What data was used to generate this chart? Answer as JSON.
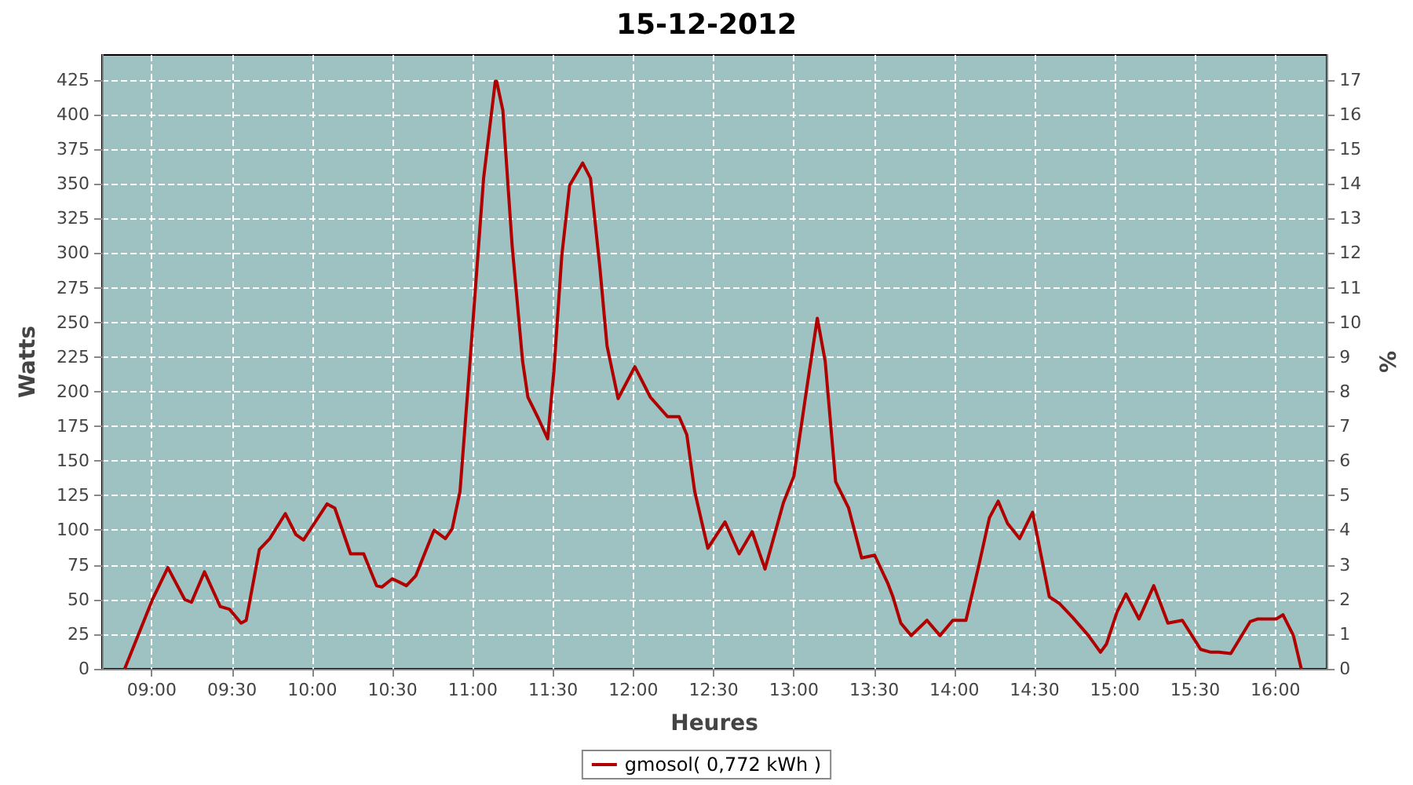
{
  "chart_data": {
    "type": "line",
    "title": "15-12-2012",
    "xlabel": "Heures",
    "ylabel": "Watts",
    "y2label": "%",
    "x": [
      8.831,
      9.004,
      9.1,
      9.205,
      9.247,
      9.328,
      9.426,
      9.484,
      9.556,
      9.588,
      9.67,
      9.735,
      9.832,
      9.897,
      9.945,
      10.092,
      10.14,
      10.238,
      10.32,
      10.4,
      10.433,
      10.498,
      10.586,
      10.644,
      10.758,
      10.829,
      10.871,
      10.92,
      10.985,
      11.067,
      11.14,
      11.148,
      11.187,
      11.245,
      11.31,
      11.343,
      11.407,
      11.466,
      11.505,
      11.554,
      11.603,
      11.684,
      11.733,
      11.791,
      11.836,
      11.905,
      12.009,
      12.106,
      12.213,
      12.285,
      12.333,
      12.382,
      12.464,
      12.571,
      12.659,
      12.74,
      12.82,
      12.935,
      13.0,
      13.081,
      13.146,
      13.195,
      13.26,
      13.341,
      13.422,
      13.503,
      13.584,
      13.617,
      13.666,
      13.731,
      13.829,
      13.91,
      13.99,
      14.072,
      14.153,
      14.218,
      14.273,
      14.331,
      14.406,
      14.487,
      14.591,
      14.656,
      14.737,
      14.835,
      14.91,
      14.948,
      15.013,
      15.069,
      15.15,
      15.242,
      15.33,
      15.42,
      15.534,
      15.598,
      15.647,
      15.722,
      15.842,
      15.891,
      16.005,
      16.047,
      16.112,
      16.161
    ],
    "series": [
      {
        "name": "gmosol( 0,772 kWh )",
        "color": "#b00000",
        "values": [
          0,
          50,
          73,
          50,
          48,
          70,
          45,
          43,
          33,
          35,
          86,
          94,
          112,
          97,
          93,
          119,
          116,
          83,
          83,
          60,
          59,
          65,
          60,
          67,
          100,
          94,
          101,
          128,
          226,
          354,
          424,
          424,
          403,
          305,
          222,
          196,
          181,
          166,
          215,
          298,
          349,
          365,
          354,
          290,
          233,
          195,
          218,
          196,
          182,
          182,
          169,
          128,
          87,
          106,
          83,
          99,
          72,
          120,
          139,
          203,
          253,
          222,
          135,
          116,
          80,
          82,
          62,
          52,
          33,
          24,
          35,
          24,
          35,
          35,
          75,
          109,
          121,
          105,
          94,
          113,
          52,
          47,
          37,
          24,
          12,
          18,
          41,
          54,
          36,
          60,
          33,
          35,
          14,
          12,
          12,
          11,
          34,
          36,
          36,
          39,
          24,
          0
        ]
      }
    ],
    "xlim": [
      8.69,
      16.32
    ],
    "xticks": [
      {
        "value": 9,
        "label": "09:00"
      },
      {
        "value": 9.5,
        "label": "09:30"
      },
      {
        "value": 10,
        "label": "10:00"
      },
      {
        "value": 10.5,
        "label": "10:30"
      },
      {
        "value": 11,
        "label": "11:00"
      },
      {
        "value": 11.5,
        "label": "11:30"
      },
      {
        "value": 12,
        "label": "12:00"
      },
      {
        "value": 12.5,
        "label": "12:30"
      },
      {
        "value": 13,
        "label": "13:00"
      },
      {
        "value": 13.5,
        "label": "13:30"
      },
      {
        "value": 14,
        "label": "14:00"
      },
      {
        "value": 14.5,
        "label": "14:30"
      },
      {
        "value": 15,
        "label": "15:00"
      },
      {
        "value": 15.5,
        "label": "15:30"
      },
      {
        "value": 16,
        "label": "16:00"
      }
    ],
    "ylim": [
      0,
      443
    ],
    "yticks": [
      0,
      25,
      50,
      75,
      100,
      125,
      150,
      175,
      200,
      225,
      250,
      275,
      300,
      325,
      350,
      375,
      400,
      425
    ],
    "y2lim": [
      0,
      17.72
    ],
    "y2ticks": [
      0,
      1,
      2,
      3,
      4,
      5,
      6,
      7,
      8,
      9,
      10,
      11,
      12,
      13,
      14,
      15,
      16,
      17
    ],
    "grid": true,
    "legend": "bottom",
    "marker": "none",
    "line_style": "solid"
  }
}
